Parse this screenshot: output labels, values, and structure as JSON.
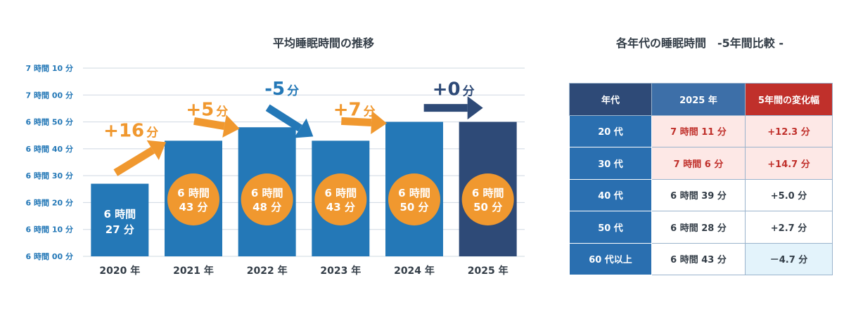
{
  "colors": {
    "bar": "#2478b7",
    "bar_last": "#2e4a77",
    "circle": "#f0982f",
    "arrow_orange": "#f0982f",
    "arrow_blue": "#2478b7",
    "arrow_navy": "#2e4a77",
    "grid": "#cfd8e2",
    "tick": "#2478b7",
    "table_header_navy": "#2e4a77",
    "table_header_blue": "#3d6fa8",
    "table_header_red": "#c0302b",
    "table_gen": "#2a6fb0",
    "highlight_red": "#fde8e6",
    "highlight_blue": "#e3f3fb"
  },
  "chart_data": {
    "type": "bar",
    "title": "平均睡眠時間の推移",
    "categories": [
      "2020 年",
      "2021 年",
      "2022 年",
      "2023 年",
      "2024 年",
      "2025 年"
    ],
    "values": [
      387,
      403,
      408,
      403,
      410,
      410
    ],
    "ylim": [
      360,
      430
    ],
    "ytick_values": [
      360,
      370,
      380,
      390,
      400,
      410,
      420,
      430
    ],
    "ytick_labels": [
      "6 時間 00 分",
      "6 時間 10 分",
      "6 時間 20 分",
      "6 時間 30 分",
      "6 時間 40 分",
      "6 時間 50 分",
      "7 時間 00 分",
      "7 時間 10 分"
    ],
    "bar_labels": [
      [
        "6 時間",
        "27 分"
      ],
      [
        "6 時間",
        "43 分"
      ],
      [
        "6 時間",
        "48 分"
      ],
      [
        "6 時間",
        "43 分"
      ],
      [
        "6 時間",
        "50 分"
      ],
      [
        "6 時間",
        "50 分"
      ]
    ],
    "changes": [
      {
        "value": "+16",
        "unit": "分",
        "direction": "up",
        "color": "orange"
      },
      {
        "value": "+5",
        "unit": "分",
        "direction": "up",
        "color": "orange"
      },
      {
        "value": "-5",
        "unit": "分",
        "direction": "down",
        "color": "blue"
      },
      {
        "value": "+7",
        "unit": "分",
        "direction": "up",
        "color": "orange"
      },
      {
        "value": "+0",
        "unit": "分",
        "direction": "flat",
        "color": "navy"
      }
    ],
    "grid": true
  },
  "table": {
    "title": "各年代の睡眠時間　-5年間比較 -",
    "headers": [
      "年代",
      "2025 年",
      "5年間の変化幅"
    ],
    "rows": [
      {
        "generation": "20 代",
        "time": "7 時間 11 分",
        "change": "+12.3 分",
        "highlight": "red"
      },
      {
        "generation": "30 代",
        "time": "7 時間 6 分",
        "change": "+14.7 分",
        "highlight": "red"
      },
      {
        "generation": "40 代",
        "time": "6 時間 39 分",
        "change": "+5.0 分",
        "highlight": "none"
      },
      {
        "generation": "50 代",
        "time": "6 時間 28 分",
        "change": "+2.7 分",
        "highlight": "none"
      },
      {
        "generation": "60 代以上",
        "time": "6 時間 43 分",
        "change": "－4.7 分",
        "highlight": "blue-change"
      }
    ]
  }
}
